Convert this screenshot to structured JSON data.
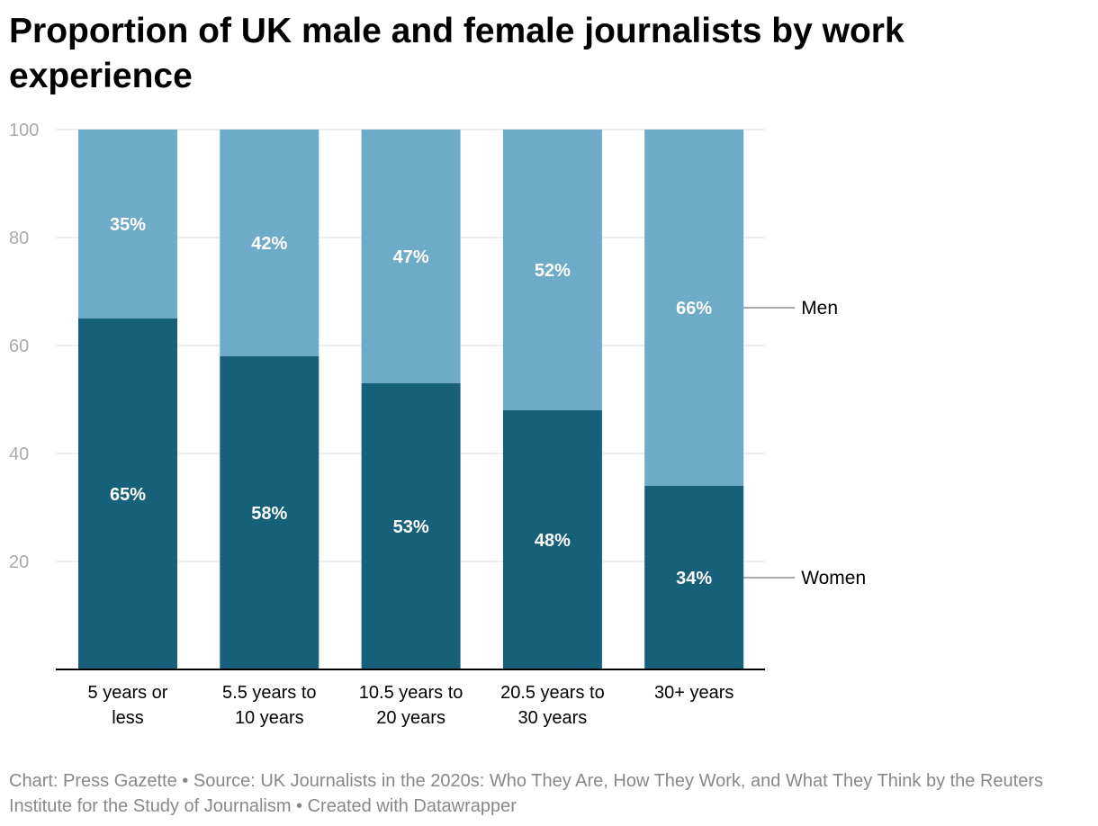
{
  "title": "Proportion of UK male and female journalists by work experience",
  "footer": "Chart: Press Gazette • Source: UK Journalists in the 2020s: Who They Are, How They Work, and What They Think by the Reuters Institute for the Study of Journalism • Created with Datawrapper",
  "colors": {
    "women": "#17607a",
    "men": "#6eabc9",
    "grid": "#dddddd",
    "axis": "#000000",
    "tick_text": "#aaaaaa",
    "label_text": "#000000",
    "bar_label": "#ffffff"
  },
  "chart_data": {
    "type": "bar",
    "stacked": true,
    "title": "Proportion of UK male and female journalists by work experience",
    "xlabel": "",
    "ylabel": "",
    "ylim": [
      0,
      100
    ],
    "yticks": [
      20,
      40,
      60,
      80,
      100
    ],
    "grid": true,
    "categories": [
      [
        "5 years or",
        "less"
      ],
      [
        "5.5 years to",
        "10 years"
      ],
      [
        "10.5 years to",
        "20 years"
      ],
      [
        "20.5 years to",
        "30 years"
      ],
      [
        "30+ years"
      ]
    ],
    "series": [
      {
        "name": "Women",
        "values": [
          65,
          58,
          53,
          48,
          34
        ],
        "labels": [
          "65%",
          "58%",
          "53%",
          "48%",
          "34%"
        ]
      },
      {
        "name": "Men",
        "values": [
          35,
          42,
          47,
          52,
          66
        ],
        "labels": [
          "35%",
          "42%",
          "47%",
          "52%",
          "66%"
        ]
      }
    ],
    "legend": "direct labels at right of last bar"
  }
}
